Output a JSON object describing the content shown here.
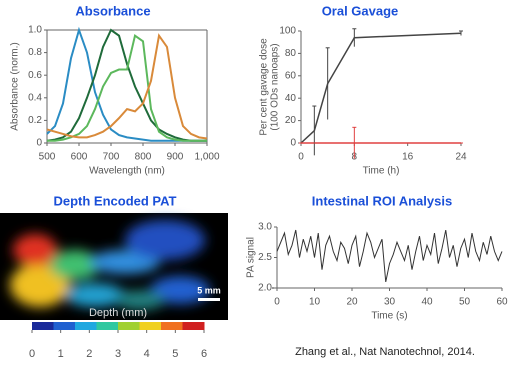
{
  "chart_data": [
    {
      "type": "line",
      "title": "Absorbance",
      "xlabel": "Wavelength (nm)",
      "ylabel": "Absorbance (norm.)",
      "xlim": [
        500,
        1000
      ],
      "xticks": [
        500,
        600,
        700,
        800,
        900,
        {
          "value": 1000,
          "label": "1,000"
        }
      ],
      "ylim": [
        0,
        1
      ],
      "yticks": [
        0,
        0.2,
        0.4,
        0.6,
        0.8,
        {
          "value": 1,
          "label": "1.0"
        }
      ],
      "x": [
        500,
        525,
        550,
        575,
        600,
        625,
        650,
        675,
        700,
        725,
        750,
        775,
        800,
        825,
        850,
        875,
        900,
        925,
        950,
        975,
        1000
      ],
      "series": [
        {
          "color": "#2a8cc4",
          "values": [
            0.08,
            0.15,
            0.35,
            0.75,
            1.0,
            0.8,
            0.45,
            0.25,
            0.12,
            0.07,
            0.05,
            0.04,
            0.03,
            0.02,
            0.02,
            0.02,
            0.02,
            0.02,
            0.02,
            0.02,
            0.02
          ]
        },
        {
          "color": "#1f6b3a",
          "values": [
            0.02,
            0.03,
            0.05,
            0.1,
            0.22,
            0.4,
            0.6,
            0.85,
            1.0,
            0.95,
            0.7,
            0.5,
            0.35,
            0.2,
            0.12,
            0.08,
            0.05,
            0.03,
            0.02,
            0.02,
            0.02
          ]
        },
        {
          "color": "#5cb85c",
          "values": [
            0.02,
            0.02,
            0.03,
            0.05,
            0.08,
            0.15,
            0.3,
            0.5,
            0.62,
            0.65,
            0.65,
            0.95,
            0.9,
            0.3,
            0.1,
            0.05,
            0.03,
            0.02,
            0.02,
            0.02,
            0.02
          ]
        },
        {
          "color": "#d98a3a",
          "values": [
            0.12,
            0.1,
            0.08,
            0.06,
            0.05,
            0.05,
            0.07,
            0.1,
            0.15,
            0.22,
            0.3,
            0.28,
            0.35,
            0.55,
            0.95,
            0.85,
            0.4,
            0.15,
            0.08,
            0.05,
            0.04
          ]
        }
      ]
    },
    {
      "type": "errorline",
      "title": "Oral Gavage",
      "xlabel": "Time (h)",
      "ylabel": [
        "Per cent  gavage dose",
        "(100 ODs nanoaps)"
      ],
      "xlim": [
        0,
        24
      ],
      "xticks": [
        0,
        8,
        16,
        24
      ],
      "ylim": [
        0,
        100
      ],
      "yticks": [
        0,
        20,
        40,
        60,
        80,
        100
      ],
      "x": [
        0,
        2,
        4,
        8,
        24
      ],
      "series": [
        {
          "color": "#444444",
          "values": [
            0,
            11,
            53,
            94,
            98
          ],
          "errors": [
            0,
            22,
            32,
            8,
            2
          ]
        },
        {
          "color": "#e04040",
          "values": [
            0,
            0,
            0,
            0,
            0
          ],
          "errors": [
            0,
            0,
            0,
            14,
            0
          ]
        }
      ]
    },
    {
      "type": "colorbar",
      "title": "Depth Encoded PAT",
      "label": "Depth (mm)",
      "scalebar": "5 mm",
      "xlim": [
        0,
        6
      ],
      "xticks": [
        0,
        1,
        2,
        3,
        4,
        5,
        6
      ],
      "colors": [
        "#1a2a9a",
        "#2060d0",
        "#20a8e0",
        "#30c8a0",
        "#a0d030",
        "#f0d020",
        "#f07020",
        "#d02020"
      ]
    },
    {
      "type": "line",
      "title": "Intestinal ROI Analysis",
      "xlabel": "Time (s)",
      "ylabel": "PA signal",
      "xlim": [
        0,
        60
      ],
      "xticks": [
        0,
        10,
        20,
        30,
        40,
        50,
        60
      ],
      "ylim": [
        2,
        3
      ],
      "yticks": [
        {
          "value": 2,
          "label": "2.0"
        },
        2.5,
        {
          "value": 3,
          "label": "3.0"
        }
      ],
      "x": [
        0,
        1,
        2,
        3,
        4,
        5,
        6,
        7,
        8,
        9,
        10,
        11,
        12,
        13,
        14,
        15,
        16,
        17,
        18,
        19,
        20,
        21,
        22,
        23,
        24,
        25,
        26,
        27,
        28,
        29,
        30,
        31,
        32,
        33,
        34,
        35,
        36,
        37,
        38,
        39,
        40,
        41,
        42,
        43,
        44,
        45,
        46,
        47,
        48,
        49,
        50,
        51,
        52,
        53,
        54,
        55,
        56,
        57,
        58,
        59,
        60
      ],
      "series": [
        {
          "color": "#333333",
          "values": [
            2.6,
            2.75,
            2.9,
            2.55,
            2.7,
            2.95,
            2.5,
            2.8,
            2.6,
            2.85,
            2.5,
            2.9,
            2.3,
            2.7,
            2.85,
            2.6,
            2.45,
            2.75,
            2.65,
            2.4,
            2.7,
            2.85,
            2.35,
            2.6,
            2.9,
            2.75,
            2.5,
            2.65,
            2.8,
            2.1,
            2.4,
            2.55,
            2.75,
            2.6,
            2.45,
            2.7,
            2.3,
            2.6,
            2.85,
            2.45,
            2.7,
            2.55,
            2.9,
            2.4,
            2.65,
            2.95,
            2.5,
            2.7,
            2.35,
            2.65,
            2.8,
            2.5,
            2.9,
            2.6,
            2.45,
            2.75,
            2.55,
            2.85,
            2.6,
            2.45,
            2.6
          ]
        }
      ]
    }
  ],
  "citation": "Zhang et al., Nat Nanotechnol, 2014."
}
